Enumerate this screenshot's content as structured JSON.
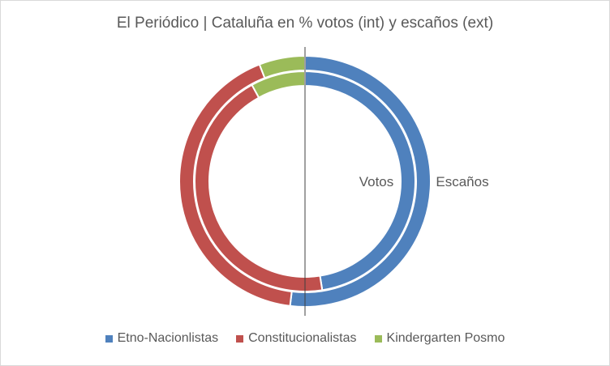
{
  "chart_data": {
    "type": "pie",
    "subtype": "doughnut",
    "title": "El Periódico | Cataluña en % votos (int) y escaños (ext)",
    "categories": [
      "Etno-Nacionlistas",
      "Constitucionalistas",
      "Kindergarten Posmo"
    ],
    "colors": [
      "#4f81bd",
      "#c0504d",
      "#9bbb59"
    ],
    "series": [
      {
        "name": "Votos",
        "values": [
          47.5,
          44.5,
          8.0
        ]
      },
      {
        "name": "Escaños",
        "values": [
          51.9,
          42.2,
          5.9
        ]
      }
    ],
    "annotations": [
      "Votos",
      "Escaños"
    ],
    "legend_position": "bottom"
  }
}
